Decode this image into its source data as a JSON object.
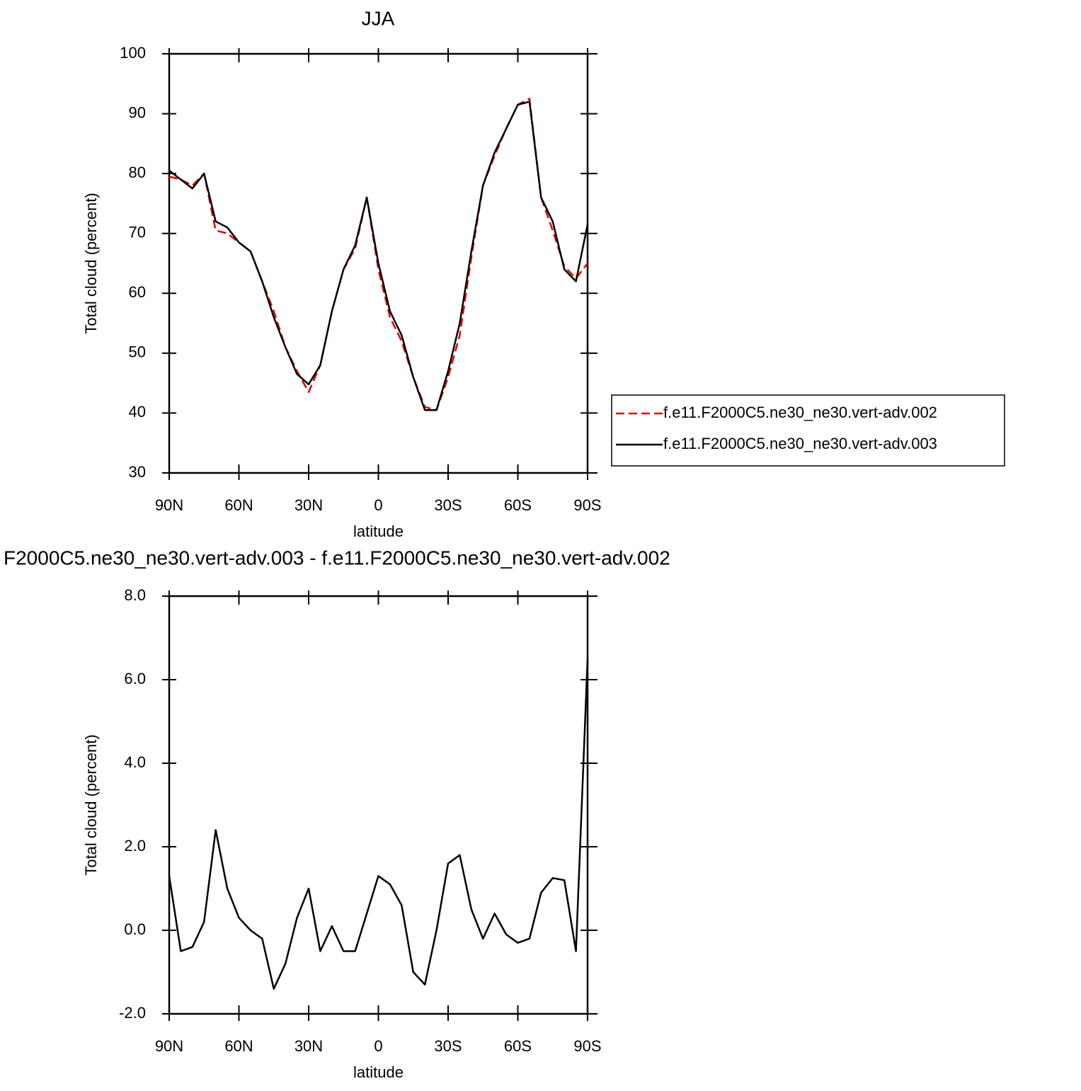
{
  "chart_data": [
    {
      "type": "line",
      "title": "JJA",
      "xlabel": "latitude",
      "ylabel": "Total cloud (percent)",
      "x": [
        90,
        85,
        80,
        75,
        70,
        65,
        60,
        55,
        50,
        45,
        40,
        35,
        30,
        25,
        20,
        15,
        10,
        5,
        0,
        -5,
        -10,
        -15,
        -20,
        -25,
        -30,
        -35,
        -40,
        -45,
        -50,
        -55,
        -60,
        -65,
        -70,
        -75,
        -80,
        -85,
        -90
      ],
      "xlim": [
        90,
        -90
      ],
      "xticks": [
        {
          "value": 90,
          "label": "90N"
        },
        {
          "value": 60,
          "label": "60N"
        },
        {
          "value": 30,
          "label": "30N"
        },
        0,
        {
          "value": -30,
          "label": "30S"
        },
        {
          "value": -60,
          "label": "60S"
        },
        {
          "value": -90,
          "label": "90S"
        }
      ],
      "ylim": [
        30,
        100
      ],
      "yticks": [
        30,
        40,
        50,
        60,
        70,
        80,
        90,
        100
      ],
      "legend": "right",
      "series": [
        {
          "name": "f.e11.F2000C5.ne30_ne30.vert-adv.002",
          "color": "#e00000",
          "style": "dashed",
          "values": [
            79.5,
            79,
            78,
            80,
            70.5,
            70,
            68.5,
            67,
            62,
            57,
            51,
            47,
            43.5,
            48,
            57,
            64,
            67.5,
            76,
            64,
            56,
            52,
            46,
            41,
            40.5,
            46,
            53,
            66,
            78,
            83,
            87.5,
            91.5,
            92.5,
            76,
            70.5,
            64.5,
            62.5,
            65
          ]
        },
        {
          "name": "f.e11.F2000C5.ne30_ne30.vert-adv.003",
          "color": "#000000",
          "style": "solid",
          "values": [
            80.5,
            79,
            77.5,
            80,
            72,
            71,
            68.5,
            67,
            62,
            56,
            51,
            46.5,
            44.8,
            48,
            57,
            64,
            68,
            76,
            65,
            57,
            53,
            46,
            40.5,
            40.5,
            47,
            55,
            67,
            78,
            83.5,
            87.5,
            91.5,
            92,
            76,
            72,
            64,
            62,
            71.5
          ]
        }
      ]
    },
    {
      "type": "line",
      "title": "F2000C5.ne30_ne30.vert-adv.003 - f.e11.F2000C5.ne30_ne30.vert-adv.002",
      "xlabel": "latitude",
      "ylabel": "Total cloud (percent)",
      "x": [
        90,
        85,
        80,
        75,
        70,
        65,
        60,
        55,
        50,
        45,
        40,
        35,
        30,
        25,
        20,
        15,
        10,
        5,
        0,
        -5,
        -10,
        -15,
        -20,
        -25,
        -30,
        -35,
        -40,
        -45,
        -50,
        -55,
        -60,
        -65,
        -70,
        -75,
        -80,
        -85,
        -90
      ],
      "xlim": [
        90,
        -90
      ],
      "xticks": [
        {
          "value": 90,
          "label": "90N"
        },
        {
          "value": 60,
          "label": "60N"
        },
        {
          "value": 30,
          "label": "30N"
        },
        0,
        {
          "value": -30,
          "label": "30S"
        },
        {
          "value": -60,
          "label": "60S"
        },
        {
          "value": -90,
          "label": "90S"
        }
      ],
      "ylim": [
        -2,
        8
      ],
      "yticks": [
        {
          "value": -2,
          "label": "-2.0"
        },
        {
          "value": 0,
          "label": "0.0"
        },
        {
          "value": 2,
          "label": "2.0"
        },
        {
          "value": 4,
          "label": "4.0"
        },
        {
          "value": 6,
          "label": "6.0"
        },
        {
          "value": 8,
          "label": "8.0"
        }
      ],
      "series": [
        {
          "color": "#000000",
          "style": "solid",
          "values": [
            1.3,
            -0.5,
            -0.4,
            0.2,
            2.4,
            1.0,
            0.3,
            0,
            -0.2,
            -1.4,
            -0.8,
            0.3,
            1.0,
            -0.5,
            0.1,
            -0.5,
            -0.5,
            0.4,
            1.3,
            1.1,
            0.6,
            -1.0,
            -1.3,
            0.0,
            1.6,
            1.8,
            0.5,
            -0.2,
            0.4,
            -0.1,
            -0.3,
            -0.2,
            0.9,
            1.25,
            1.2,
            -0.5,
            6.5
          ]
        }
      ]
    }
  ]
}
